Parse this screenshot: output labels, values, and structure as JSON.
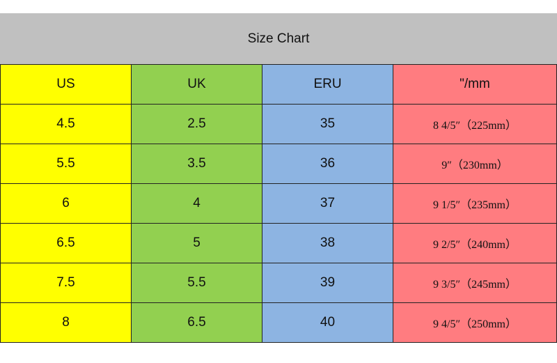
{
  "table": {
    "title": "Size Chart",
    "header": [
      "US",
      "UK",
      "ERU",
      "\"/mm"
    ],
    "rows": [
      [
        "4.5",
        "2.5",
        "35",
        "8 4/5″（225mm）"
      ],
      [
        "5.5",
        "3.5",
        "36",
        "9″（230mm）"
      ],
      [
        "6",
        "4",
        "37",
        "9 1/5″（235mm）"
      ],
      [
        "6.5",
        "5",
        "38",
        "9 2/5″（240mm）"
      ],
      [
        "7.5",
        "5.5",
        "39",
        "9 3/5″（245mm）"
      ],
      [
        "8",
        "6.5",
        "40",
        "9 4/5″（250mm）"
      ]
    ]
  }
}
